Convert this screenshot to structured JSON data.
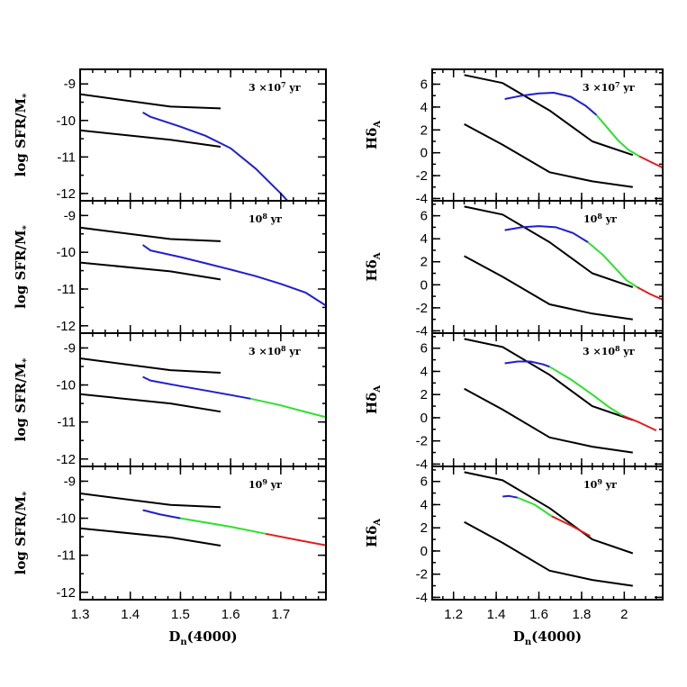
{
  "colors": {
    "black": "#000000",
    "blue": "#1f1fcf",
    "green": "#2ee02e",
    "red": "#e01f1f"
  },
  "chart_data": [
    {
      "type": "line",
      "column": "left",
      "row": 0,
      "xlabel": "",
      "ylabel": "log SFR/M*",
      "ylabel_main": "log SFR/M",
      "ylabel_sub": "*",
      "annotation": "3 ×10",
      "annotation_exp": "7",
      "annotation_unit": " yr",
      "xlim": [
        1.3,
        1.79
      ],
      "ylim": [
        -12.2,
        -8.6
      ],
      "xticks": [
        1.3,
        1.4,
        1.5,
        1.6,
        1.7
      ],
      "xticklabels": [
        "",
        "",
        "",
        "",
        ""
      ],
      "yticks": [
        -9,
        -10,
        -11,
        -12
      ],
      "yticklabels": [
        "-9",
        "-10",
        "-11",
        "-12"
      ],
      "series": [
        {
          "color": "black",
          "points": [
            [
              1.3,
              -9.28
            ],
            [
              1.48,
              -9.62
            ],
            [
              1.58,
              -9.67
            ]
          ]
        },
        {
          "color": "black",
          "points": [
            [
              1.3,
              -10.27
            ],
            [
              1.48,
              -10.53
            ],
            [
              1.58,
              -10.72
            ]
          ]
        },
        {
          "color": "blue",
          "points": [
            [
              1.425,
              -9.78
            ],
            [
              1.44,
              -9.9
            ],
            [
              1.5,
              -10.17
            ],
            [
              1.55,
              -10.42
            ],
            [
              1.6,
              -10.76
            ],
            [
              1.65,
              -11.32
            ],
            [
              1.7,
              -12.0
            ],
            [
              1.72,
              -12.3
            ]
          ]
        }
      ]
    },
    {
      "type": "line",
      "column": "left",
      "row": 1,
      "xlabel": "",
      "ylabel": "log SFR/M*",
      "ylabel_main": "log SFR/M",
      "ylabel_sub": "*",
      "annotation": "10",
      "annotation_exp": "8",
      "annotation_unit": " yr",
      "xlim": [
        1.3,
        1.79
      ],
      "ylim": [
        -12.2,
        -8.6
      ],
      "xticks": [
        1.3,
        1.4,
        1.5,
        1.6,
        1.7
      ],
      "xticklabels": [
        "",
        "",
        "",
        "",
        ""
      ],
      "yticks": [
        -9,
        -10,
        -11,
        -12
      ],
      "yticklabels": [
        "-9",
        "-10",
        "-11",
        "-12"
      ],
      "series": [
        {
          "color": "black",
          "points": [
            [
              1.3,
              -9.33
            ],
            [
              1.48,
              -9.64
            ],
            [
              1.58,
              -9.7
            ]
          ]
        },
        {
          "color": "black",
          "points": [
            [
              1.3,
              -10.28
            ],
            [
              1.48,
              -10.52
            ],
            [
              1.58,
              -10.74
            ]
          ]
        },
        {
          "color": "blue",
          "points": [
            [
              1.425,
              -9.8
            ],
            [
              1.44,
              -9.95
            ],
            [
              1.5,
              -10.13
            ],
            [
              1.55,
              -10.3
            ],
            [
              1.6,
              -10.47
            ],
            [
              1.65,
              -10.65
            ],
            [
              1.7,
              -10.86
            ],
            [
              1.75,
              -11.1
            ],
            [
              1.79,
              -11.45
            ]
          ]
        }
      ]
    },
    {
      "type": "line",
      "column": "left",
      "row": 2,
      "xlabel": "",
      "ylabel": "log SFR/M*",
      "ylabel_main": "log SFR/M",
      "ylabel_sub": "*",
      "annotation": "3 ×10",
      "annotation_exp": "8",
      "annotation_unit": " yr",
      "xlim": [
        1.3,
        1.79
      ],
      "ylim": [
        -12.2,
        -8.6
      ],
      "xticks": [
        1.3,
        1.4,
        1.5,
        1.6,
        1.7
      ],
      "xticklabels": [
        "",
        "",
        "",
        "",
        ""
      ],
      "yticks": [
        -9,
        -10,
        -11,
        -12
      ],
      "yticklabels": [
        "-9",
        "-10",
        "-11",
        "-12"
      ],
      "series": [
        {
          "color": "black",
          "points": [
            [
              1.3,
              -9.28
            ],
            [
              1.48,
              -9.6
            ],
            [
              1.58,
              -9.67
            ]
          ]
        },
        {
          "color": "black",
          "points": [
            [
              1.3,
              -10.25
            ],
            [
              1.48,
              -10.5
            ],
            [
              1.58,
              -10.72
            ]
          ]
        },
        {
          "color": "blue",
          "points": [
            [
              1.425,
              -9.78
            ],
            [
              1.44,
              -9.88
            ],
            [
              1.5,
              -10.03
            ],
            [
              1.55,
              -10.15
            ],
            [
              1.6,
              -10.27
            ],
            [
              1.64,
              -10.37
            ]
          ]
        },
        {
          "color": "green",
          "points": [
            [
              1.64,
              -10.37
            ],
            [
              1.7,
              -10.55
            ],
            [
              1.75,
              -10.73
            ],
            [
              1.79,
              -10.87
            ]
          ]
        }
      ]
    },
    {
      "type": "line",
      "column": "left",
      "row": 3,
      "xlabel": "D_n(4000)",
      "xlabel_main": "D",
      "xlabel_sub": "n",
      "xlabel_rest": "(4000)",
      "ylabel": "log SFR/M*",
      "ylabel_main": "log SFR/M",
      "ylabel_sub": "*",
      "annotation": "10",
      "annotation_exp": "9",
      "annotation_unit": " yr",
      "xlim": [
        1.3,
        1.79
      ],
      "ylim": [
        -12.2,
        -8.6
      ],
      "xticks": [
        1.3,
        1.4,
        1.5,
        1.6,
        1.7
      ],
      "xticklabels": [
        "1.3",
        "1.4",
        "1.5",
        "1.6",
        "1.7"
      ],
      "yticks": [
        -9,
        -10,
        -11,
        -12
      ],
      "yticklabels": [
        "-9",
        "-10",
        "-11",
        "-12"
      ],
      "series": [
        {
          "color": "black",
          "points": [
            [
              1.3,
              -9.33
            ],
            [
              1.48,
              -9.64
            ],
            [
              1.58,
              -9.7
            ]
          ]
        },
        {
          "color": "black",
          "points": [
            [
              1.3,
              -10.27
            ],
            [
              1.48,
              -10.52
            ],
            [
              1.58,
              -10.74
            ]
          ]
        },
        {
          "color": "blue",
          "points": [
            [
              1.425,
              -9.78
            ],
            [
              1.46,
              -9.9
            ],
            [
              1.5,
              -10.0
            ]
          ]
        },
        {
          "color": "green",
          "points": [
            [
              1.5,
              -10.0
            ],
            [
              1.6,
              -10.23
            ],
            [
              1.67,
              -10.42
            ]
          ]
        },
        {
          "color": "red",
          "points": [
            [
              1.67,
              -10.42
            ],
            [
              1.73,
              -10.58
            ],
            [
              1.79,
              -10.73
            ]
          ]
        }
      ]
    },
    {
      "type": "line",
      "column": "right",
      "row": 0,
      "xlabel": "",
      "ylabel": "Hδ_A",
      "ylabel_main": "Hδ",
      "ylabel_sub": "A",
      "annotation": "3 ×10",
      "annotation_exp": "7",
      "annotation_unit": " yr",
      "xlim": [
        1.1,
        2.18
      ],
      "ylim": [
        -4.2,
        7.3
      ],
      "xticks": [
        1.2,
        1.4,
        1.6,
        1.8,
        2.0
      ],
      "xticklabels": [
        "",
        "",
        "",
        "",
        ""
      ],
      "yticks": [
        6,
        4,
        2,
        0,
        -2,
        -4
      ],
      "yticklabels": [
        "6",
        "4",
        "2",
        "0",
        "-2",
        "-4"
      ],
      "series": [
        {
          "color": "black",
          "points": [
            [
              1.25,
              6.8
            ],
            [
              1.43,
              6.1
            ],
            [
              1.65,
              3.7
            ],
            [
              1.85,
              1.0
            ],
            [
              2.04,
              -0.2
            ]
          ]
        },
        {
          "color": "black",
          "points": [
            [
              1.25,
              2.5
            ],
            [
              1.43,
              0.7
            ],
            [
              1.65,
              -1.7
            ],
            [
              1.85,
              -2.5
            ],
            [
              2.04,
              -3.0
            ]
          ]
        },
        {
          "color": "blue",
          "points": [
            [
              1.44,
              4.7
            ],
            [
              1.52,
              5.0
            ],
            [
              1.6,
              5.2
            ],
            [
              1.67,
              5.25
            ],
            [
              1.75,
              4.9
            ],
            [
              1.82,
              4.1
            ],
            [
              1.87,
              3.3
            ]
          ]
        },
        {
          "color": "green",
          "points": [
            [
              1.87,
              3.3
            ],
            [
              1.92,
              2.2
            ],
            [
              1.97,
              1.1
            ],
            [
              2.02,
              0.25
            ],
            [
              2.07,
              -0.3
            ]
          ]
        },
        {
          "color": "red",
          "points": [
            [
              2.07,
              -0.3
            ],
            [
              2.13,
              -0.85
            ],
            [
              2.18,
              -1.3
            ]
          ]
        }
      ]
    },
    {
      "type": "line",
      "column": "right",
      "row": 1,
      "xlabel": "",
      "ylabel": "Hδ_A",
      "ylabel_main": "Hδ",
      "ylabel_sub": "A",
      "annotation": "10",
      "annotation_exp": "8",
      "annotation_unit": " yr",
      "xlim": [
        1.1,
        2.18
      ],
      "ylim": [
        -4.2,
        7.3
      ],
      "xticks": [
        1.2,
        1.4,
        1.6,
        1.8,
        2.0
      ],
      "xticklabels": [
        "",
        "",
        "",
        "",
        ""
      ],
      "yticks": [
        6,
        4,
        2,
        0,
        -2,
        -4
      ],
      "yticklabels": [
        "6",
        "4",
        "2",
        "0",
        "-2",
        "-4"
      ],
      "series": [
        {
          "color": "black",
          "points": [
            [
              1.25,
              6.8
            ],
            [
              1.43,
              6.1
            ],
            [
              1.65,
              3.7
            ],
            [
              1.85,
              1.0
            ],
            [
              2.04,
              -0.2
            ]
          ]
        },
        {
          "color": "black",
          "points": [
            [
              1.25,
              2.5
            ],
            [
              1.43,
              0.7
            ],
            [
              1.65,
              -1.7
            ],
            [
              1.85,
              -2.5
            ],
            [
              2.04,
              -3.0
            ]
          ]
        },
        {
          "color": "blue",
          "points": [
            [
              1.44,
              4.75
            ],
            [
              1.52,
              5.0
            ],
            [
              1.6,
              5.1
            ],
            [
              1.68,
              5.0
            ],
            [
              1.76,
              4.5
            ],
            [
              1.83,
              3.7
            ]
          ]
        },
        {
          "color": "green",
          "points": [
            [
              1.83,
              3.7
            ],
            [
              1.9,
              2.6
            ],
            [
              1.96,
              1.4
            ],
            [
              2.01,
              0.4
            ],
            [
              2.06,
              -0.2
            ]
          ]
        },
        {
          "color": "red",
          "points": [
            [
              2.06,
              -0.2
            ],
            [
              2.12,
              -0.8
            ],
            [
              2.18,
              -1.3
            ]
          ]
        }
      ]
    },
    {
      "type": "line",
      "column": "right",
      "row": 2,
      "xlabel": "",
      "ylabel": "Hδ_A",
      "ylabel_main": "Hδ",
      "ylabel_sub": "A",
      "annotation": "3 ×10",
      "annotation_exp": "8",
      "annotation_unit": " yr",
      "xlim": [
        1.1,
        2.18
      ],
      "ylim": [
        -4.2,
        7.3
      ],
      "xticks": [
        1.2,
        1.4,
        1.6,
        1.8,
        2.0
      ],
      "xticklabels": [
        "",
        "",
        "",
        "",
        ""
      ],
      "yticks": [
        6,
        4,
        2,
        0,
        -2,
        -4
      ],
      "yticklabels": [
        "6",
        "4",
        "2",
        "0",
        "-2",
        "-4"
      ],
      "series": [
        {
          "color": "black",
          "points": [
            [
              1.25,
              6.8
            ],
            [
              1.43,
              6.1
            ],
            [
              1.65,
              3.7
            ],
            [
              1.85,
              1.0
            ],
            [
              2.04,
              -0.2
            ]
          ]
        },
        {
          "color": "black",
          "points": [
            [
              1.25,
              2.5
            ],
            [
              1.43,
              0.7
            ],
            [
              1.65,
              -1.7
            ],
            [
              1.85,
              -2.5
            ],
            [
              2.04,
              -3.0
            ]
          ]
        },
        {
          "color": "blue",
          "points": [
            [
              1.44,
              4.7
            ],
            [
              1.5,
              4.85
            ],
            [
              1.56,
              4.85
            ],
            [
              1.62,
              4.6
            ],
            [
              1.65,
              4.4
            ]
          ]
        },
        {
          "color": "green",
          "points": [
            [
              1.65,
              4.4
            ],
            [
              1.75,
              3.3
            ],
            [
              1.85,
              2.0
            ],
            [
              1.93,
              0.9
            ],
            [
              1.99,
              0.2
            ]
          ]
        },
        {
          "color": "red",
          "points": [
            [
              1.99,
              0.2
            ],
            [
              2.07,
              -0.4
            ],
            [
              2.15,
              -1.1
            ]
          ]
        }
      ]
    },
    {
      "type": "line",
      "column": "right",
      "row": 3,
      "xlabel": "D_n(4000)",
      "xlabel_main": "D",
      "xlabel_sub": "n",
      "xlabel_rest": "(4000)",
      "ylabel": "Hδ_A",
      "ylabel_main": "Hδ",
      "ylabel_sub": "A",
      "annotation": "10",
      "annotation_exp": "9",
      "annotation_unit": " yr",
      "xlim": [
        1.1,
        2.18
      ],
      "ylim": [
        -4.2,
        7.3
      ],
      "xticks": [
        1.2,
        1.4,
        1.6,
        1.8,
        2.0
      ],
      "xticklabels": [
        "1.2",
        "1.4",
        "1.6",
        "1.8",
        "2"
      ],
      "yticks": [
        6,
        4,
        2,
        0,
        -2,
        -4
      ],
      "yticklabels": [
        "6",
        "4",
        "2",
        "0",
        "-2",
        "-4"
      ],
      "series": [
        {
          "color": "black",
          "points": [
            [
              1.25,
              6.8
            ],
            [
              1.43,
              6.1
            ],
            [
              1.65,
              3.7
            ],
            [
              1.85,
              1.0
            ],
            [
              2.04,
              -0.2
            ]
          ]
        },
        {
          "color": "black",
          "points": [
            [
              1.25,
              2.5
            ],
            [
              1.43,
              0.7
            ],
            [
              1.65,
              -1.7
            ],
            [
              1.85,
              -2.5
            ],
            [
              2.04,
              -3.0
            ]
          ]
        },
        {
          "color": "blue",
          "points": [
            [
              1.43,
              4.7
            ],
            [
              1.46,
              4.75
            ],
            [
              1.5,
              4.6
            ]
          ]
        },
        {
          "color": "green",
          "points": [
            [
              1.5,
              4.6
            ],
            [
              1.58,
              4.0
            ],
            [
              1.66,
              3.0
            ]
          ]
        },
        {
          "color": "red",
          "points": [
            [
              1.66,
              3.0
            ],
            [
              1.75,
              2.2
            ],
            [
              1.84,
              1.3
            ]
          ]
        }
      ]
    }
  ]
}
